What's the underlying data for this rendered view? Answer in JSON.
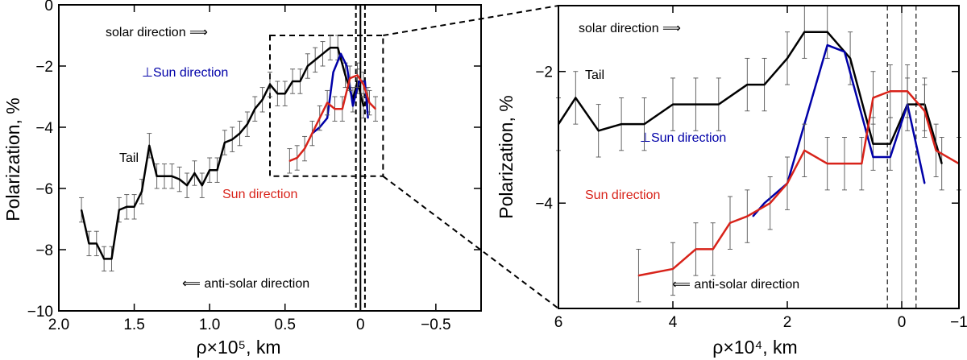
{
  "chart_data": [
    {
      "type": "line",
      "xlabel": "ρ×10⁵, km",
      "ylabel": "Polarization, %",
      "xlim": [
        2.0,
        -0.8
      ],
      "ylim": [
        -10,
        0
      ],
      "x_ticks": [
        2.0,
        1.5,
        1.0,
        0.5,
        0,
        -0.5
      ],
      "x_tick_labels": [
        "2.0",
        "1.5",
        "1.0",
        "0.5",
        "0",
        "−0.5"
      ],
      "y_ticks": [
        0,
        -2,
        -4,
        -6,
        -8,
        -10
      ],
      "y_tick_labels": [
        "0",
        "−2",
        "−4",
        "−6",
        "−8",
        "−10"
      ],
      "annotations": {
        "solar": "solar direction ⟹",
        "antisolar": "⟸ anti-solar direction",
        "tail": "Tail",
        "perp": "⊥Sun direction",
        "sun": "Sun direction"
      },
      "reference_lines": {
        "solid": 0.0,
        "dashed": [
          0.03,
          -0.03
        ]
      },
      "zoom_box": {
        "x": [
          0.6,
          -0.15
        ],
        "y": [
          -1.0,
          -5.6
        ]
      },
      "series": [
        {
          "color": "#000000",
          "error": 0.4,
          "x": [
            1.85,
            1.8,
            1.75,
            1.7,
            1.65,
            1.6,
            1.55,
            1.5,
            1.45,
            1.4,
            1.35,
            1.3,
            1.25,
            1.2,
            1.15,
            1.1,
            1.05,
            1.0,
            0.95,
            0.9,
            0.85,
            0.8,
            0.75,
            0.7,
            0.65,
            0.6,
            0.55,
            0.5,
            0.45,
            0.4,
            0.35,
            0.3,
            0.25,
            0.2,
            0.15,
            0.1,
            0.05,
            0.02,
            -0.02,
            -0.05
          ],
          "y": [
            -6.7,
            -7.8,
            -7.8,
            -8.3,
            -8.3,
            -6.7,
            -6.6,
            -6.6,
            -6.1,
            -4.6,
            -5.6,
            -5.6,
            -5.6,
            -5.7,
            -5.9,
            -5.5,
            -5.9,
            -5.4,
            -5.4,
            -4.5,
            -4.4,
            -4.2,
            -3.9,
            -3.4,
            -3.1,
            -2.6,
            -2.9,
            -2.9,
            -2.5,
            -2.5,
            -2.0,
            -1.8,
            -1.6,
            -1.4,
            -1.4,
            -2.3,
            -3.1,
            -2.5,
            -3.3,
            -3.1
          ]
        },
        {
          "color": "#0000a8",
          "x": [
            0.32,
            0.27,
            0.22,
            0.18,
            0.13,
            0.09,
            0.05,
            0.01,
            -0.03,
            -0.05
          ],
          "y": [
            -4.2,
            -4.0,
            -3.7,
            -2.2,
            -1.6,
            -2.0,
            -3.3,
            -2.5,
            -2.5,
            -3.7
          ]
        },
        {
          "color": "#d8231a",
          "error": 0.4,
          "x": [
            0.47,
            0.42,
            0.37,
            0.32,
            0.27,
            0.22,
            0.17,
            0.12,
            0.07,
            0.02,
            -0.02,
            -0.06,
            -0.1
          ],
          "y": [
            -5.1,
            -5.0,
            -4.7,
            -4.2,
            -3.7,
            -3.2,
            -3.4,
            -3.4,
            -2.4,
            -2.3,
            -2.6,
            -3.2,
            -3.4
          ]
        }
      ]
    },
    {
      "type": "line",
      "xlabel": "ρ×10⁴, km",
      "ylabel": "Polarization, %",
      "xlim": [
        6,
        -1
      ],
      "ylim": [
        -5.6,
        -1.0
      ],
      "x_ticks": [
        6,
        4,
        2,
        0,
        -1
      ],
      "x_tick_labels": [
        "6",
        "4",
        "2",
        "0",
        "−1"
      ],
      "y_ticks": [
        -2,
        -4
      ],
      "y_tick_labels": [
        "−2",
        "−4"
      ],
      "annotations": {
        "solar": "solar direction ⟹",
        "antisolar": "⟸ anti-solar direction",
        "tail": "Tail",
        "perp": "⊥Sun direction",
        "sun": "Sun direction"
      },
      "reference_lines": {
        "solid": 0.0,
        "dashed": [
          0.25,
          -0.25
        ]
      },
      "series": [
        {
          "color": "#000000",
          "error": 0.4,
          "x": [
            6.0,
            5.7,
            5.3,
            4.9,
            4.5,
            4.0,
            3.6,
            3.2,
            2.7,
            2.4,
            2.0,
            1.7,
            1.3,
            0.9,
            0.5,
            0.2,
            -0.1,
            -0.4,
            -0.7
          ],
          "y": [
            -2.8,
            -2.4,
            -2.9,
            -2.8,
            -2.8,
            -2.5,
            -2.5,
            -2.5,
            -2.2,
            -2.2,
            -1.8,
            -1.4,
            -1.4,
            -1.8,
            -3.1,
            -3.1,
            -2.5,
            -2.5,
            -3.4
          ]
        },
        {
          "color": "#0000a8",
          "x": [
            2.6,
            2.4,
            2.0,
            1.7,
            1.3,
            1.0,
            0.5,
            0.2,
            -0.1,
            -0.4
          ],
          "y": [
            -4.2,
            -4.0,
            -3.7,
            -2.8,
            -1.6,
            -1.7,
            -3.3,
            -3.3,
            -2.5,
            -3.7
          ]
        },
        {
          "color": "#d8231a",
          "error": 0.4,
          "x": [
            4.6,
            4.0,
            3.6,
            3.3,
            3.0,
            2.7,
            2.3,
            2.0,
            1.7,
            1.3,
            1.0,
            0.7,
            0.5,
            0.2,
            -0.1,
            -0.4,
            -0.6,
            -1.0
          ],
          "y": [
            -5.1,
            -5.0,
            -4.7,
            -4.7,
            -4.3,
            -4.2,
            -4.0,
            -3.7,
            -3.2,
            -3.4,
            -3.4,
            -3.4,
            -2.4,
            -2.3,
            -2.3,
            -2.6,
            -3.2,
            -3.4
          ]
        }
      ]
    }
  ]
}
